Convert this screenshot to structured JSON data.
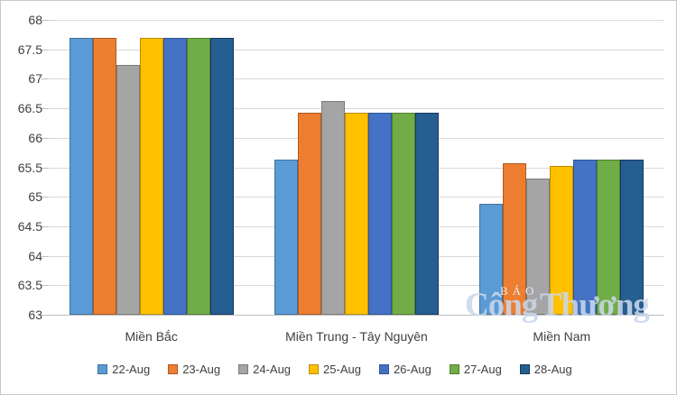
{
  "chart_data": {
    "type": "bar",
    "title": "",
    "categories": [
      "Miền Bắc",
      "Miền Trung - Tây Nguyên",
      "Miền Nam"
    ],
    "series": [
      {
        "name": "22-Aug",
        "color": "#5B9BD5",
        "border_color": "#41719C",
        "values": [
          67.69,
          65.63,
          64.88
        ]
      },
      {
        "name": "23-Aug",
        "color": "#ED7D31",
        "border_color": "#AE5A21",
        "values": [
          67.69,
          66.43,
          65.57
        ]
      },
      {
        "name": "24-Aug",
        "color": "#A5A5A5",
        "border_color": "#7B7B7B",
        "values": [
          67.23,
          66.63,
          65.31
        ]
      },
      {
        "name": "25-Aug",
        "color": "#FFC000",
        "border_color": "#BC8C00",
        "values": [
          67.69,
          66.43,
          65.52
        ]
      },
      {
        "name": "26-Aug",
        "color": "#4472C4",
        "border_color": "#2F5597",
        "values": [
          67.69,
          66.43,
          65.63
        ]
      },
      {
        "name": "27-Aug",
        "color": "#70AD47",
        "border_color": "#507E32",
        "values": [
          67.69,
          66.43,
          65.63
        ]
      },
      {
        "name": "28-Aug",
        "color": "#255E91",
        "border_color": "#17375E",
        "values": [
          67.69,
          66.43,
          65.63
        ]
      }
    ],
    "ylim": [
      63,
      68
    ],
    "y_tick_step": 0.5,
    "y_tick_labels": [
      "63",
      "63.5",
      "64",
      "64.5",
      "65",
      "65.5",
      "66",
      "66.5",
      "67",
      "67.5",
      "68"
    ],
    "grid": true,
    "legend_position": "bottom",
    "gridline_color": "#D9D9D9",
    "axis_line_color": "#BFBFBF",
    "text_color": "#404040"
  },
  "watermark": {
    "line1": "BÁO",
    "line2": "Công Thương"
  }
}
